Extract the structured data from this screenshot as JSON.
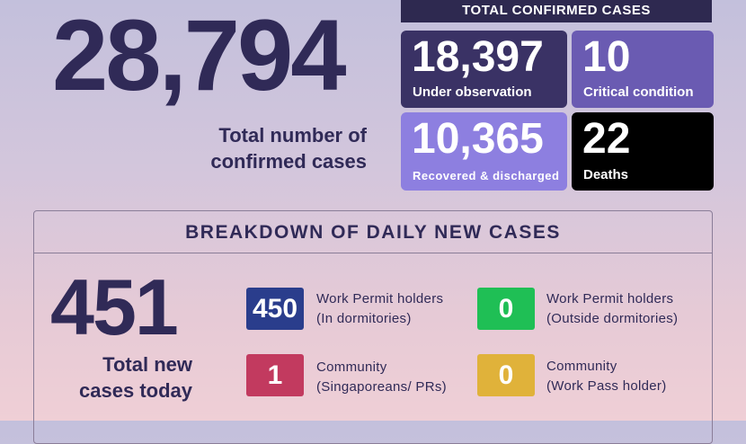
{
  "summary": {
    "total": "28,794",
    "total_label": "Total number of\nconfirmed cases",
    "header": "TOTAL CONFIRMED CASES",
    "tiles": [
      {
        "value": "18,397",
        "label": "Under observation",
        "color": "#3a3265"
      },
      {
        "value": "10",
        "label": "Critical condition",
        "color": "#6a5bb2"
      },
      {
        "value": "10,365",
        "label": "Recovered & discharged",
        "color": "#8d7fe0"
      },
      {
        "value": "22",
        "label": "Deaths",
        "color": "#000000"
      }
    ]
  },
  "breakdown": {
    "title": "BREAKDOWN OF DAILY NEW CASES",
    "total": "451",
    "total_label": "Total new\ncases today",
    "categories": [
      {
        "value": "450",
        "label": "Work Permit holders\n(In dormitories)",
        "color": "#2a3d8c"
      },
      {
        "value": "0",
        "label": "Work Permit holders\n(Outside dormitories)",
        "color": "#1fbf55"
      },
      {
        "value": "1",
        "label": "Community\n(Singaporeans/ PRs)",
        "color": "#c23a5f"
      },
      {
        "value": "0",
        "label": "Community\n(Work Pass holder)",
        "color": "#e0b23a"
      }
    ]
  }
}
